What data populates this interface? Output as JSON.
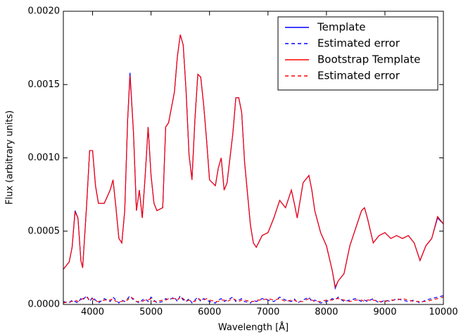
{
  "chart_data": {
    "type": "line",
    "xlabel": "Wavelength [Å]",
    "ylabel": "Flux (arbitrary units)",
    "xlim": [
      3500,
      10000
    ],
    "ylim": [
      0,
      0.002
    ],
    "xticks": [
      4000,
      5000,
      6000,
      7000,
      8000,
      9000,
      10000
    ],
    "yticks": [
      {
        "value": 0,
        "label": "0.0000"
      },
      0.0005,
      {
        "value": 0.001,
        "label": "0.0010"
      },
      0.0015,
      {
        "value": 0.002,
        "label": "0.0020"
      }
    ],
    "legend": "upper right",
    "x": [
      3500,
      3600,
      3650,
      3700,
      3750,
      3800,
      3830,
      3900,
      3950,
      4000,
      4050,
      4100,
      4200,
      4300,
      4350,
      4400,
      4450,
      4500,
      4550,
      4600,
      4640,
      4700,
      4750,
      4800,
      4850,
      4900,
      4950,
      5000,
      5050,
      5100,
      5200,
      5250,
      5300,
      5400,
      5450,
      5500,
      5550,
      5600,
      5650,
      5700,
      5750,
      5800,
      5850,
      5900,
      5950,
      6000,
      6100,
      6150,
      6200,
      6250,
      6300,
      6400,
      6450,
      6500,
      6550,
      6600,
      6700,
      6750,
      6800,
      6900,
      7000,
      7100,
      7200,
      7300,
      7400,
      7450,
      7500,
      7600,
      7700,
      7750,
      7800,
      7900,
      8000,
      8100,
      8150,
      8200,
      8300,
      8400,
      8500,
      8600,
      8650,
      8700,
      8800,
      8900,
      9000,
      9100,
      9200,
      9300,
      9400,
      9500,
      9600,
      9700,
      9800,
      9900,
      10000
    ],
    "series": [
      {
        "name": "Template",
        "color": "#0000ff",
        "linestyle": "solid",
        "values": [
          0.00024,
          0.00029,
          0.00039,
          0.00064,
          0.00059,
          0.0003,
          0.00025,
          0.00069,
          0.00105,
          0.00105,
          0.00081,
          0.00069,
          0.00069,
          0.00078,
          0.00085,
          0.00066,
          0.00045,
          0.00042,
          0.00064,
          0.00126,
          0.00158,
          0.00117,
          0.00064,
          0.00078,
          0.00059,
          0.00088,
          0.00121,
          0.00088,
          0.00069,
          0.00064,
          0.00066,
          0.00121,
          0.00124,
          0.00145,
          0.00169,
          0.00184,
          0.00177,
          0.00145,
          0.00102,
          0.00085,
          0.00126,
          0.00157,
          0.00155,
          0.00136,
          0.00112,
          0.00085,
          0.00081,
          0.00093,
          0.001,
          0.00078,
          0.00083,
          0.00117,
          0.00141,
          0.00141,
          0.00131,
          0.00097,
          0.00054,
          0.00042,
          0.00039,
          0.00047,
          0.00049,
          0.00059,
          0.00071,
          0.00066,
          0.00078,
          0.00069,
          0.00059,
          0.00083,
          0.00088,
          0.00078,
          0.00064,
          0.00049,
          0.0004,
          0.00023,
          0.00011,
          0.00016,
          0.00021,
          0.0004,
          0.00052,
          0.00064,
          0.00066,
          0.00059,
          0.00042,
          0.00047,
          0.00049,
          0.00045,
          0.00047,
          0.00045,
          0.00047,
          0.00042,
          0.0003,
          0.0004,
          0.00045,
          0.00059,
          0.00055
        ]
      },
      {
        "name": "Estimated error",
        "color": "#0000ff",
        "linestyle": "dashed",
        "values": [
          2e-05,
          1e-05,
          3e-05,
          2e-05,
          1e-05,
          4e-05,
          3e-05,
          6e-05,
          2e-05,
          5e-05,
          3e-05,
          1e-05,
          4e-05,
          2e-05,
          5e-05,
          3e-05,
          1e-05,
          3e-05,
          2e-05,
          4e-05,
          6e-05,
          3e-05,
          2e-05,
          1e-05,
          3e-05,
          4e-05,
          2e-05,
          5e-05,
          3e-05,
          1e-05,
          2e-05,
          4e-05,
          3e-05,
          5e-05,
          2e-05,
          6e-05,
          3e-05,
          2e-05,
          4e-05,
          1e-05,
          3e-05,
          5e-05,
          2e-05,
          4e-05,
          3e-05,
          2e-05,
          1e-05,
          3e-05,
          4e-05,
          2e-05,
          3e-05,
          5e-05,
          2e-05,
          3e-05,
          4e-05,
          2e-05,
          1e-05,
          3e-05,
          2e-05,
          4e-05,
          3e-05,
          2e-05,
          5e-05,
          3e-05,
          2e-05,
          4e-05,
          1e-05,
          3e-05,
          5e-05,
          2e-05,
          3e-05,
          1e-05,
          2e-05,
          4e-05,
          3e-05,
          5e-05,
          2e-05,
          3e-05,
          4e-05,
          2e-05,
          3e-05,
          2e-05,
          4e-05,
          1e-05,
          3e-05,
          2e-05,
          4e-05,
          3e-05,
          2e-05,
          3e-05,
          1e-05,
          3e-05,
          4e-05,
          5e-05,
          6e-05
        ]
      },
      {
        "name": "Bootstrap Template",
        "color": "#ff0000",
        "linestyle": "solid",
        "values": [
          0.00024,
          0.00029,
          0.00039,
          0.00063,
          0.00059,
          0.0003,
          0.00025,
          0.00069,
          0.00105,
          0.00105,
          0.00081,
          0.00069,
          0.00069,
          0.00078,
          0.00085,
          0.00066,
          0.00045,
          0.00042,
          0.00064,
          0.00126,
          0.00156,
          0.00117,
          0.00064,
          0.00078,
          0.00059,
          0.00088,
          0.00121,
          0.00088,
          0.00069,
          0.00064,
          0.00066,
          0.00121,
          0.00124,
          0.00145,
          0.00169,
          0.00184,
          0.00177,
          0.00145,
          0.00102,
          0.00085,
          0.00126,
          0.00157,
          0.00155,
          0.00136,
          0.00112,
          0.00085,
          0.00081,
          0.00093,
          0.001,
          0.00078,
          0.00083,
          0.00117,
          0.00141,
          0.00141,
          0.00131,
          0.00097,
          0.00054,
          0.00042,
          0.00039,
          0.00047,
          0.00049,
          0.00059,
          0.00071,
          0.00066,
          0.00078,
          0.00069,
          0.00059,
          0.00083,
          0.00088,
          0.00078,
          0.00064,
          0.00049,
          0.0004,
          0.00023,
          0.00012,
          0.00016,
          0.00021,
          0.0004,
          0.00052,
          0.00064,
          0.00066,
          0.00059,
          0.00042,
          0.00047,
          0.00049,
          0.00045,
          0.00047,
          0.00045,
          0.00047,
          0.00042,
          0.0003,
          0.0004,
          0.00045,
          0.0006,
          0.00055
        ]
      },
      {
        "name": "Estimated error",
        "color": "#ff0000",
        "linestyle": "dashed",
        "values": [
          1e-05,
          2e-05,
          2e-05,
          3e-05,
          2e-05,
          3e-05,
          4e-05,
          5e-05,
          3e-05,
          4e-05,
          2e-05,
          2e-05,
          3e-05,
          3e-05,
          4e-05,
          2e-05,
          2e-05,
          2e-05,
          3e-05,
          3e-05,
          5e-05,
          4e-05,
          2e-05,
          2e-05,
          2e-05,
          3e-05,
          3e-05,
          4e-05,
          2e-05,
          2e-05,
          3e-05,
          3e-05,
          4e-05,
          4e-05,
          3e-05,
          5e-05,
          4e-05,
          2e-05,
          3e-05,
          2e-05,
          2e-05,
          4e-05,
          3e-05,
          3e-05,
          4e-05,
          3e-05,
          2e-05,
          2e-05,
          3e-05,
          3e-05,
          2e-05,
          4e-05,
          3e-05,
          2e-05,
          3e-05,
          3e-05,
          2e-05,
          2e-05,
          3e-05,
          3e-05,
          4e-05,
          3e-05,
          4e-05,
          2e-05,
          3e-05,
          3e-05,
          2e-05,
          2e-05,
          4e-05,
          3e-05,
          2e-05,
          2e-05,
          3e-05,
          3e-05,
          4e-05,
          4e-05,
          3e-05,
          2e-05,
          3e-05,
          3e-05,
          2e-05,
          3e-05,
          3e-05,
          2e-05,
          2e-05,
          3e-05,
          3e-05,
          4e-05,
          3e-05,
          2e-05,
          2e-05,
          2e-05,
          3e-05,
          4e-05,
          5e-05
        ]
      }
    ]
  }
}
